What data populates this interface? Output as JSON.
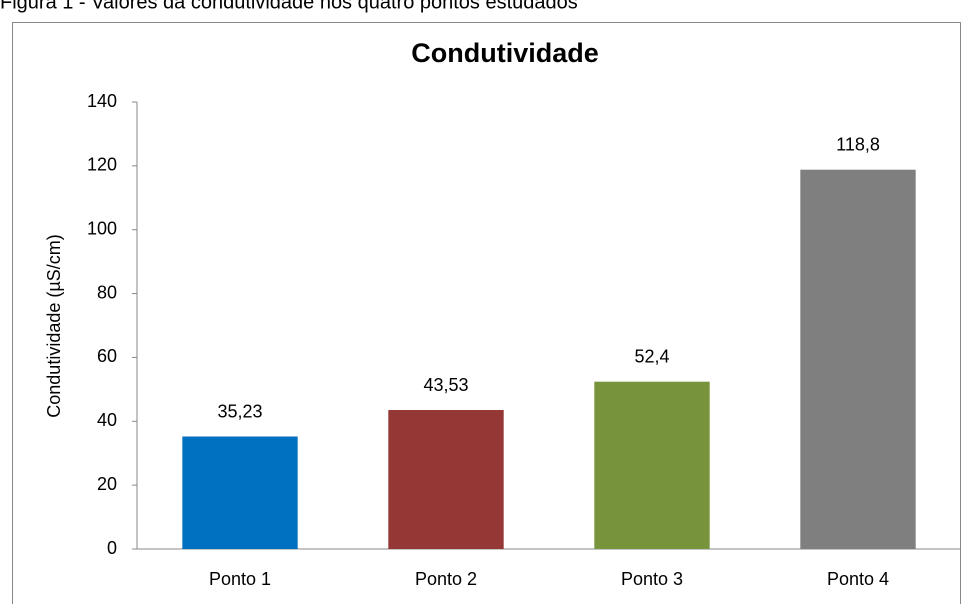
{
  "caption": "Figura 1 - Valores da condutividade nos quatro pontos estudados",
  "chart_data": {
    "type": "bar",
    "title": "Condutividade",
    "y_label": "Condutividade  (µS/cm)",
    "categories": [
      "Ponto 1",
      "Ponto 2",
      "Ponto 3",
      "Ponto 4"
    ],
    "values": [
      35.23,
      43.53,
      52.4,
      118.8
    ],
    "value_labels": [
      "35,23",
      "43,53",
      "52,4",
      "118,8"
    ],
    "colors": [
      "#0070c0",
      "#953735",
      "#77933c",
      "#7f7f7f"
    ],
    "ylim": [
      0,
      140
    ],
    "yticks": [
      0,
      20,
      40,
      60,
      80,
      100,
      120,
      140
    ],
    "grid": false
  }
}
